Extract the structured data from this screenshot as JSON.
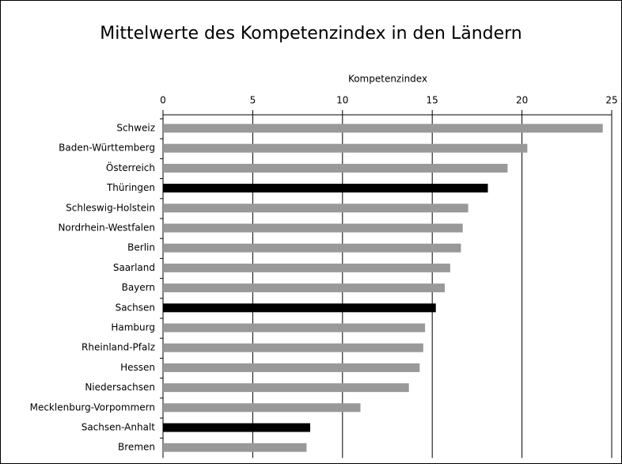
{
  "chart_data": {
    "type": "hbar",
    "title": "Mittelwerte des Kompetenzindex in den Ländern",
    "x_label": "Kompetenzindex",
    "categories": [
      "Schweiz",
      "Baden-Württemberg",
      "Österreich",
      "Thüringen",
      "Schleswig-Holstein",
      "Nordrhein-Westfalen",
      "Berlin",
      "Saarland",
      "Bayern",
      "Sachsen",
      "Hamburg",
      "Rheinland-Pfalz",
      "Hessen",
      "Niedersachsen",
      "Mecklenburg-Vorpommern",
      "Sachsen-Anhalt",
      "Bremen"
    ],
    "values": [
      24.5,
      20.3,
      19.2,
      18.1,
      17.0,
      16.7,
      16.6,
      16.0,
      15.7,
      15.2,
      14.6,
      14.5,
      14.3,
      13.7,
      11.0,
      8.2,
      8.0
    ],
    "colors": [
      "#999999",
      "#999999",
      "#999999",
      "#000000",
      "#999999",
      "#999999",
      "#999999",
      "#999999",
      "#999999",
      "#000000",
      "#999999",
      "#999999",
      "#999999",
      "#999999",
      "#999999",
      "#000000",
      "#999999"
    ],
    "xlim": [
      0,
      25
    ],
    "xticks": [
      0,
      5,
      10,
      15,
      20,
      25
    ],
    "grid": true
  }
}
